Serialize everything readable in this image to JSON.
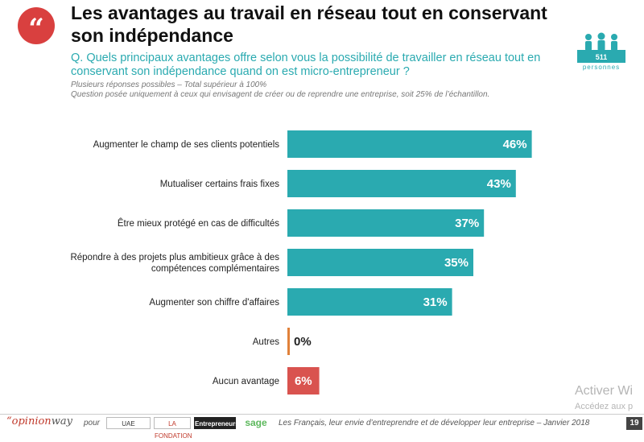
{
  "header": {
    "quote_mark": "“",
    "title": "Les avantages au travail en réseau tout en conservant son indépendance",
    "question": "Q. Quels principaux avantages offre selon vous la possibilité de travailler en réseau tout en conservant son indépendance quand on est micro-entrepreneur ?",
    "note1": "Plusieurs réponses possibles – Total supérieur à 100%",
    "note2": "Question posée uniquement à ceux qui envisagent de créer ou de reprendre une entreprise, soit 25% de l’échantillon."
  },
  "sample": {
    "count": "511",
    "label": "personnes",
    "icon": "people-icon"
  },
  "chart_data": {
    "type": "bar",
    "orientation": "horizontal",
    "categories": [
      "Augmenter le champ de ses clients potentiels",
      "Mutualiser certains frais fixes",
      "Être mieux protégé en cas de difficultés",
      "Répondre à des projets plus ambitieux grâce à des compétences complémentaires",
      "Augmenter son chiffre d'affaires",
      "Autres",
      "Aucun avantage"
    ],
    "category_lines": [
      [
        "Augmenter le champ de ses clients potentiels"
      ],
      [
        "Mutualiser certains frais fixes"
      ],
      [
        "Être mieux protégé en cas de difficultés"
      ],
      [
        "Répondre à des projets plus ambitieux grâce à des",
        "compétences complémentaires"
      ],
      [
        "Augmenter son chiffre d'affaires"
      ],
      [
        "Autres"
      ],
      [
        "Aucun avantage"
      ]
    ],
    "values": [
      46,
      43,
      37,
      35,
      31,
      0,
      6
    ],
    "value_labels": [
      "46%",
      "43%",
      "37%",
      "35%",
      "31%",
      "0%",
      "6%"
    ],
    "colors": [
      "#2aaab0",
      "#2aaab0",
      "#2aaab0",
      "#2aaab0",
      "#2aaab0",
      "#e0813a",
      "#d9534f"
    ],
    "unit": "%",
    "xlim": [
      0,
      50
    ],
    "grid": false,
    "legend": "none"
  },
  "footer": {
    "logo": "“opinion",
    "logo_suffix": "way",
    "pour": "pour",
    "partners": [
      "UAE",
      "LA FONDATION",
      "Entrepreneurs",
      "sage"
    ],
    "caption": "Les Français, leur envie d’entreprendre et de développer leur entreprise – Janvier 2018",
    "page": "19"
  },
  "watermark": {
    "line1": "Activer Wi",
    "line2": "Accédez aux p"
  }
}
